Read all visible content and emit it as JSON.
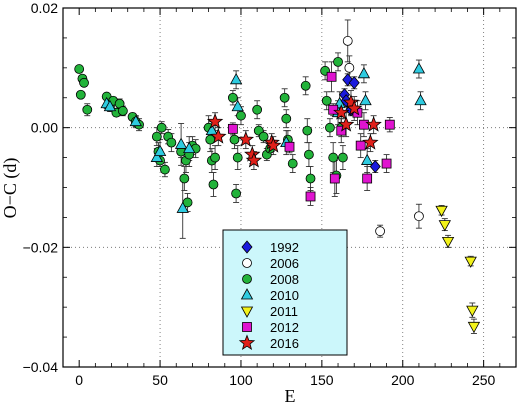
{
  "chart_data": {
    "type": "scatter",
    "xlabel": "E",
    "ylabel": "O−C (d)",
    "xlim": [
      -10,
      270
    ],
    "ylim": [
      -0.04,
      0.02
    ],
    "x_ticks": [
      0,
      50,
      100,
      150,
      200,
      250
    ],
    "x_tick_labels": [
      "0",
      "50",
      "100",
      "150",
      "200",
      "250"
    ],
    "y_ticks": [
      0.02,
      0.0,
      -0.02,
      -0.04
    ],
    "y_tick_labels": [
      "0.02",
      "0.00",
      "−0.02",
      "−0.04"
    ],
    "grid": "dotted",
    "legend_position": "bottom-center",
    "series": [
      {
        "name": "1992",
        "marker": "diamond",
        "color": "#1a1adc",
        "points": [
          [
            164,
            0.0055,
            0.001
          ],
          [
            165,
            0.0045,
            0.001
          ],
          [
            166,
            0.008,
            0.001
          ],
          [
            168,
            0.003,
            0.001
          ],
          [
            170,
            0.0075,
            0.001
          ],
          [
            183,
            -0.0065,
            0.001
          ]
        ]
      },
      {
        "name": "2006",
        "marker": "circle-open",
        "color": "#ffffff",
        "points": [
          [
            166,
            0.0145,
            0.0035
          ],
          [
            167,
            0.01,
            0.002
          ],
          [
            186,
            -0.0173,
            0.001
          ],
          [
            210,
            -0.0148,
            0.002
          ]
        ]
      },
      {
        "name": "2008",
        "marker": "circle",
        "color": "#22b33a",
        "points": [
          [
            0,
            0.0098,
            0.0004
          ],
          [
            1,
            0.0055,
            0.0005
          ],
          [
            2,
            0.0082,
            0.0005
          ],
          [
            3,
            0.0075,
            0.0006
          ],
          [
            5,
            0.003,
            0.001
          ],
          [
            17,
            0.0052,
            0.0005
          ],
          [
            19,
            0.0035,
            0.0006
          ],
          [
            21,
            0.0045,
            0.0006
          ],
          [
            23,
            0.0025,
            0.0006
          ],
          [
            25,
            0.004,
            0.0008
          ],
          [
            27,
            0.0028,
            0.0008
          ],
          [
            33,
            0.0018,
            0.0006
          ],
          [
            35,
            0.001,
            0.001
          ],
          [
            37,
            0.0005,
            0.001
          ],
          [
            48,
            -0.0015,
            0.0015
          ],
          [
            49,
            -0.004,
            0.0015
          ],
          [
            50,
            -0.0055,
            0.001
          ],
          [
            51,
            0.0,
            0.001
          ],
          [
            53,
            -0.007,
            0.0012
          ],
          [
            55,
            -0.0015,
            0.0012
          ],
          [
            57,
            -0.0025,
            0.0015
          ],
          [
            63,
            -0.004,
            0.001
          ],
          [
            65,
            -0.0085,
            0.002
          ],
          [
            66,
            -0.0055,
            0.002
          ],
          [
            67,
            -0.0125,
            0.0015
          ],
          [
            68,
            -0.0045,
            0.002
          ],
          [
            70,
            -0.003,
            0.0015
          ],
          [
            72,
            -0.0035,
            0.0015
          ],
          [
            80,
            0.0,
            0.002
          ],
          [
            81,
            -0.002,
            0.002
          ],
          [
            82,
            -0.0055,
            0.002
          ],
          [
            83,
            -0.0095,
            0.002
          ],
          [
            84,
            -0.005,
            0.002
          ],
          [
            95,
            0.005,
            0.0012
          ],
          [
            96,
            -0.002,
            0.0015
          ],
          [
            97,
            -0.011,
            0.0015
          ],
          [
            98,
            -0.005,
            0.002
          ],
          [
            100,
            0.002,
            0.0015
          ],
          [
            110,
            0.003,
            0.0015
          ],
          [
            111,
            -0.0005,
            0.001
          ],
          [
            114,
            -0.0015,
            0.001
          ],
          [
            116,
            -0.0045,
            0.001
          ],
          [
            118,
            -0.0035,
            0.001
          ],
          [
            127,
            0.005,
            0.0015
          ],
          [
            128,
            0.0015,
            0.0015
          ],
          [
            129,
            -0.002,
            0.0015
          ],
          [
            132,
            -0.006,
            0.0015
          ],
          [
            140,
            0.007,
            0.0015
          ],
          [
            141,
            -0.0005,
            0.002
          ],
          [
            142,
            -0.0045,
            0.002
          ],
          [
            143,
            -0.0085,
            0.002
          ],
          [
            152,
            0.0095,
            0.0015
          ],
          [
            153,
            0.0045,
            0.0015
          ],
          [
            155,
            0.0,
            0.0015
          ],
          [
            157,
            -0.005,
            0.0025
          ],
          [
            159,
            -0.008,
            0.003
          ],
          [
            160,
            0.011,
            0.0015
          ],
          [
            162,
            0.0,
            0.0015
          ],
          [
            163,
            -0.005,
            0.002
          ]
        ]
      },
      {
        "name": "2010",
        "marker": "triangle-up",
        "color": "#2ecbe0",
        "points": [
          [
            17,
            0.004,
            0.0008
          ],
          [
            19,
            0.0035,
            0.0008
          ],
          [
            35,
            0.001,
            0.0008
          ],
          [
            48,
            -0.005,
            0.0015
          ],
          [
            50,
            -0.004,
            0.002
          ],
          [
            63,
            -0.0028,
            0.0035
          ],
          [
            64,
            -0.0135,
            0.005
          ],
          [
            68,
            -0.0035,
            0.002
          ],
          [
            82,
            -0.0005,
            0.0015
          ],
          [
            97,
            0.008,
            0.0015
          ],
          [
            98,
            0.0035,
            0.0015
          ],
          [
            128,
            -0.0025,
            0.002
          ],
          [
            160,
            0.0025,
            0.002
          ],
          [
            161,
            0.004,
            0.002
          ],
          [
            176,
            0.009,
            0.0015
          ],
          [
            177,
            0.0045,
            0.0015
          ],
          [
            178,
            -0.0055,
            0.002
          ],
          [
            210,
            0.0098,
            0.0015
          ],
          [
            211,
            0.0045,
            0.0015
          ]
        ]
      },
      {
        "name": "2011",
        "marker": "triangle-down",
        "color": "#f2f21a",
        "points": [
          [
            224,
            -0.0138,
            0.0008
          ],
          [
            226,
            -0.0162,
            0.001
          ],
          [
            228,
            -0.019,
            0.001
          ],
          [
            242,
            -0.0223,
            0.0008
          ],
          [
            243,
            -0.0305,
            0.0012
          ],
          [
            244,
            -0.0332,
            0.0012
          ]
        ]
      },
      {
        "name": "2012",
        "marker": "square",
        "color": "#e014d0",
        "points": [
          [
            95,
            -0.0002,
            0.001
          ],
          [
            130,
            -0.0032,
            0.001
          ],
          [
            143,
            -0.0115,
            0.0015
          ],
          [
            156,
            0.0085,
            0.0025
          ],
          [
            157,
            0.003,
            0.001
          ],
          [
            158,
            -0.0085,
            0.003
          ],
          [
            162,
            -0.0005,
            0.002
          ],
          [
            172,
            0.0025,
            0.002
          ],
          [
            174,
            -0.003,
            0.002
          ],
          [
            176,
            0.0005,
            0.002
          ],
          [
            178,
            -0.0085,
            0.002
          ],
          [
            190,
            -0.006,
            0.0015
          ],
          [
            192,
            0.0005,
            0.0012
          ]
        ]
      },
      {
        "name": "2016",
        "marker": "star",
        "color": "#e0201a",
        "points": [
          [
            84,
            0.001,
            0.0015
          ],
          [
            86,
            -0.0015,
            0.0015
          ],
          [
            103,
            -0.002,
            0.0015
          ],
          [
            107,
            -0.0045,
            0.0015
          ],
          [
            108,
            -0.0055,
            0.0015
          ],
          [
            119,
            -0.0025,
            0.0015
          ],
          [
            120,
            -0.003,
            0.0015
          ],
          [
            162,
            0.0025,
            0.002
          ],
          [
            165,
            0.0005,
            0.002
          ],
          [
            168,
            0.0042,
            0.002
          ],
          [
            170,
            0.0032,
            0.002
          ],
          [
            180,
            -0.0025,
            0.0015
          ],
          [
            182,
            0.0005,
            0.0015
          ]
        ]
      }
    ]
  }
}
